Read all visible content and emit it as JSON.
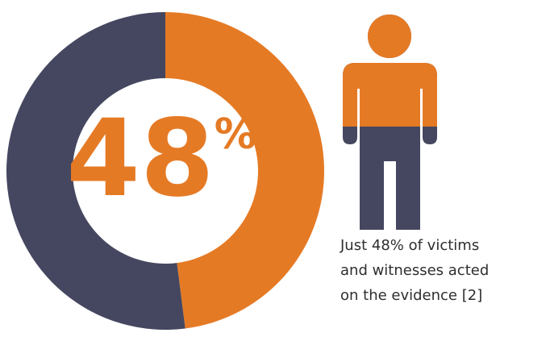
{
  "chart_data": {
    "type": "donut",
    "values": [
      48,
      52
    ],
    "colors": [
      "#e57a25",
      "#454760"
    ],
    "value_labels": [
      "48%",
      null
    ],
    "caption": [
      "Just 48% of victims",
      "and witnesses acted",
      "on the evidence [2]"
    ]
  }
}
